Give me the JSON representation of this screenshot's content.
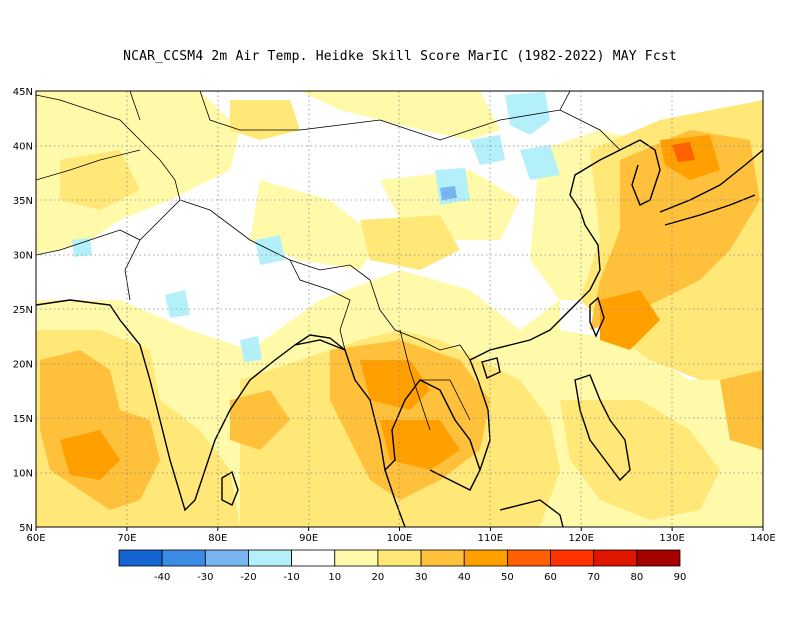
{
  "title": "NCAR_CCSM4  2m Air Temp. Heidke Skill Score MarIC (1982-2022) MAY Fcst",
  "map": {
    "lon_range": [
      60,
      140
    ],
    "lat_range": [
      5,
      45
    ],
    "lon_ticks": [
      "60E",
      "70E",
      "80E",
      "90E",
      "100E",
      "110E",
      "120E",
      "130E",
      "140E"
    ],
    "lat_ticks": [
      "5N",
      "10N",
      "15N",
      "20N",
      "25N",
      "30N",
      "35N",
      "40N",
      "45N"
    ],
    "grid": "dotted"
  },
  "colorbar": {
    "colors": [
      "#1464d2",
      "#3c8ce6",
      "#78b4f0",
      "#b4f0fa",
      "#ffffff",
      "#fffaaa",
      "#ffe878",
      "#ffc03c",
      "#ffa000",
      "#ff6000",
      "#ff3200",
      "#e11400",
      "#a50000"
    ],
    "labels": [
      "-40",
      "-30",
      "-20",
      "-10",
      "10",
      "20",
      "30",
      "40",
      "50",
      "60",
      "70",
      "80",
      "90"
    ]
  },
  "regions": [
    {
      "name": "weak-positive-band",
      "level": "20-30",
      "color": "#ffe878"
    },
    {
      "name": "moderate-positive",
      "level": "30-40",
      "color": "#ffc03c"
    },
    {
      "name": "strong-positive",
      "level": "40-50",
      "color": "#ffa000"
    },
    {
      "name": "local-max",
      "level": "50-60",
      "color": "#ff6000"
    },
    {
      "name": "negative-patches",
      "level": "-10 to -20",
      "color": "#b4f0fa"
    }
  ]
}
